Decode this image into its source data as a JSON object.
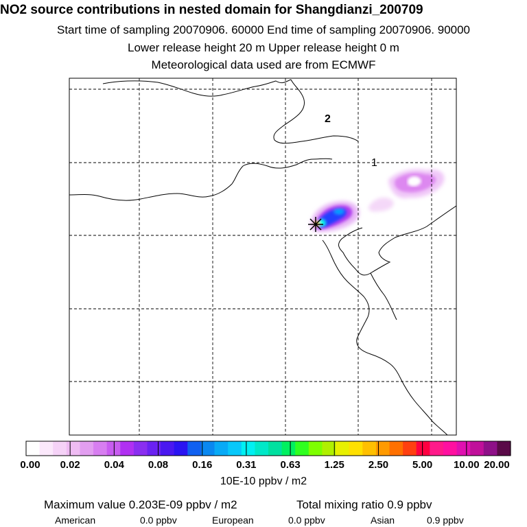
{
  "header": {
    "title": "NO2 source contributions in nested domain for Shangdianzi_200709",
    "sampling_times": "Start time of sampling 20070906. 60000      End time of sampling 20070906. 90000",
    "release_heights": "Lower release height   20 m          Upper release height    0 m",
    "meteo": "Meteorological data used are from ECMWF"
  },
  "map": {
    "grid_labels": [
      "2",
      "1"
    ],
    "release_site_marker": "star-marker-icon",
    "coastline_color": "#000000",
    "grid_line_style": "dashed",
    "plume": {
      "max_concentration_x1e-10_ppbv_m2": 2.03,
      "colors_used": [
        "#f0c8f8",
        "#dd88f0",
        "#b040f0",
        "#2040ff",
        "#00a0ff",
        "#00ffe0",
        "#ffd800"
      ]
    }
  },
  "legend": {
    "colors": [
      "#ffffff",
      "#fbe8fb",
      "#f5d2f7",
      "#efbcf3",
      "#e29ef0",
      "#d77ef0",
      "#c85cf0",
      "#b030f2",
      "#8a2ef0",
      "#6a22f2",
      "#4a18f0",
      "#2a14f2",
      "#1060f0",
      "#0a88f0",
      "#08aaf6",
      "#08c8fa",
      "#00f0f2",
      "#00e8c8",
      "#00e0a0",
      "#00f060",
      "#30ff20",
      "#7eff00",
      "#b0f000",
      "#e8f000",
      "#ffe000",
      "#ffc000",
      "#ff9a00",
      "#ff7000",
      "#ff4010",
      "#ff0040",
      "#ff1a8a",
      "#ff10a0",
      "#e010b0",
      "#c0109a",
      "#8e1088",
      "#5a0a48"
    ],
    "tick_labels": [
      "0.00",
      "0.02",
      "0.04",
      "0.08",
      "0.16",
      "0.31",
      "0.63",
      "1.25",
      "2.50",
      "5.00",
      "10.00",
      "20.00"
    ],
    "unit": "10E-10 ppbv / m2"
  },
  "stats": {
    "maximum": "Maximum value  0.203E-09 ppbv / m2",
    "total": "Total mixing ratio       0.9 ppbv",
    "contributions": [
      {
        "name": "American",
        "value": "0.0 ppbv"
      },
      {
        "name": "European",
        "value": "0.0 ppbv"
      },
      {
        "name": "Asian",
        "value": "0.9 ppbv"
      }
    ]
  }
}
